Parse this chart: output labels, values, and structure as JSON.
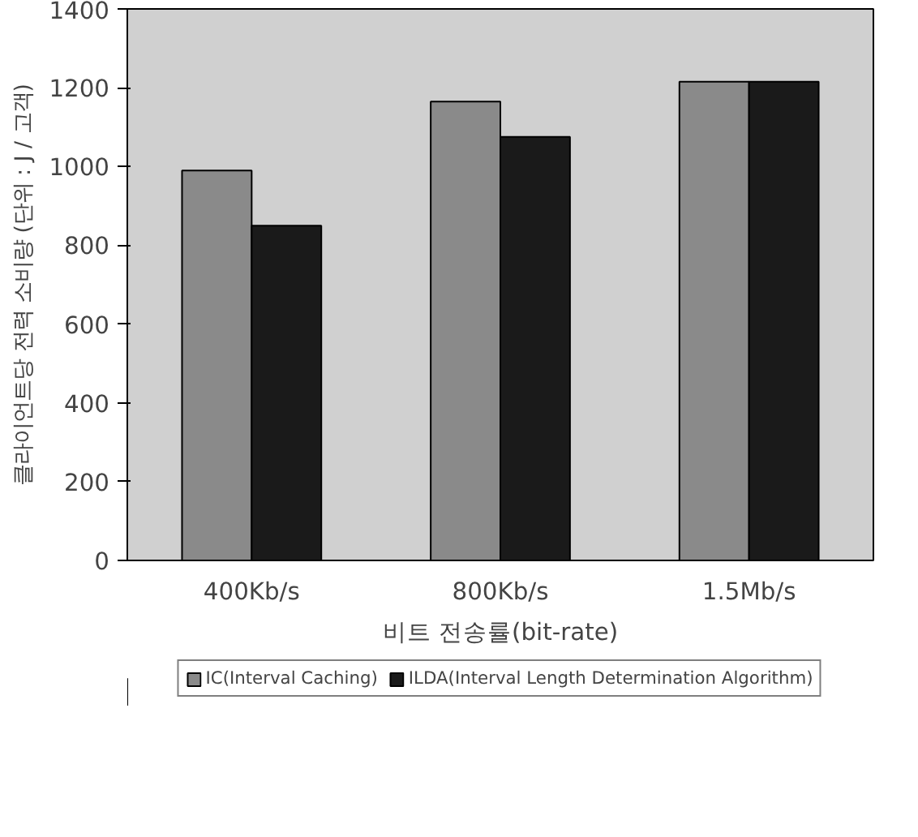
{
  "chart_data": {
    "type": "bar",
    "xlabel": "비트 전송률(bit-rate)",
    "ylabel": "클라이언트당 전력 소비량 (단위 : J / 고객)",
    "categories": [
      "400Kb/s",
      "800Kb/s",
      "1.5Mb/s"
    ],
    "series": [
      {
        "name": "IC(Interval Caching)",
        "color": "#8a8a8a",
        "values": [
          990,
          1165,
          1215
        ]
      },
      {
        "name": "ILDA(Interval Length Determination Algorithm)",
        "color": "#1a1a1a",
        "values": [
          850,
          1075,
          1215
        ]
      }
    ],
    "ylim": [
      0,
      1400
    ],
    "yticks": [
      0,
      200,
      400,
      600,
      800,
      1000,
      1200,
      1400
    ],
    "grid": false,
    "legend": "bottom"
  }
}
